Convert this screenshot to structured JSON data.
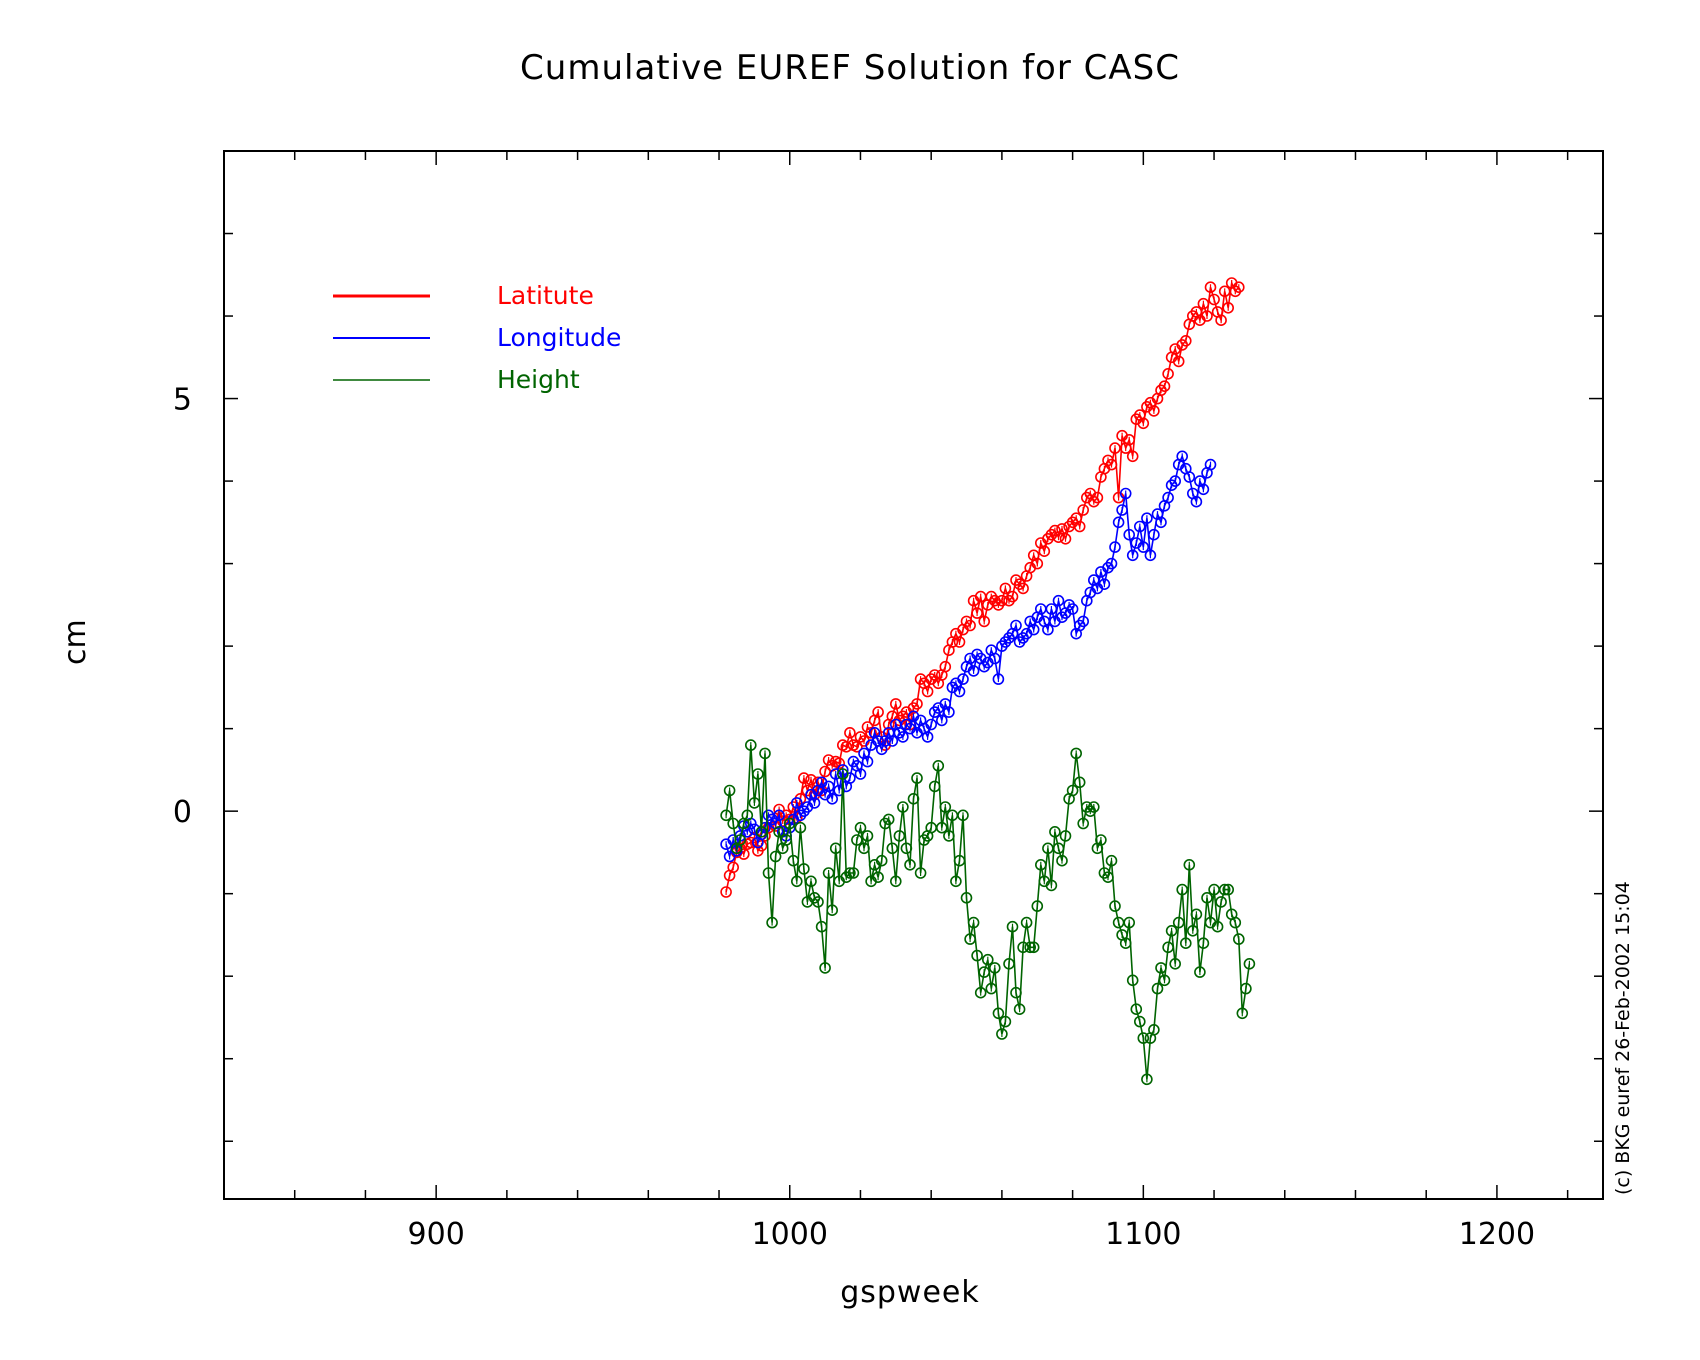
{
  "chart_data": {
    "type": "line",
    "title": "Cumulative EUREF Solution for CASC",
    "xlabel": "gspweek",
    "ylabel": "cm",
    "credit": "(c) BKG euref 26-Feb-2002 15:04",
    "xlim": [
      840,
      1230
    ],
    "ylim": [
      -4.7,
      8.0
    ],
    "xticks": [
      900,
      1000,
      1100,
      1200
    ],
    "yticks": [
      0,
      5
    ],
    "grid": false,
    "legend_position": "top-left",
    "series": [
      {
        "name": "Latitute",
        "color": "#ff0000",
        "x0": 982,
        "dx": 1,
        "values": [
          -0.98,
          -0.78,
          -0.68,
          -0.5,
          -0.45,
          -0.52,
          -0.4,
          -0.38,
          -0.32,
          -0.48,
          -0.42,
          -0.3,
          -0.2,
          -0.1,
          -0.18,
          0.02,
          -0.12,
          -0.05,
          -0.1,
          0.05,
          -0.08,
          0.15,
          0.4,
          0.25,
          0.38,
          0.2,
          0.35,
          0.25,
          0.48,
          0.62,
          0.55,
          0.6,
          0.58,
          0.8,
          0.78,
          0.95,
          0.8,
          0.78,
          0.9,
          0.85,
          1.02,
          0.95,
          1.1,
          1.2,
          0.9,
          0.8,
          1.05,
          1.15,
          1.3,
          1.1,
          1.15,
          1.2,
          1.05,
          1.25,
          1.3,
          1.6,
          1.55,
          1.45,
          1.6,
          1.65,
          1.55,
          1.65,
          1.75,
          1.95,
          2.05,
          2.15,
          2.05,
          2.2,
          2.3,
          2.25,
          2.55,
          2.4,
          2.6,
          2.3,
          2.5,
          2.6,
          2.55,
          2.5,
          2.55,
          2.7,
          2.55,
          2.6,
          2.8,
          2.75,
          2.7,
          2.85,
          2.95,
          3.1,
          3.0,
          3.25,
          3.15,
          3.3,
          3.35,
          3.4,
          3.32,
          3.42,
          3.3,
          3.45,
          3.5,
          3.55,
          3.45,
          3.65,
          3.8,
          3.85,
          3.75,
          3.8,
          4.05,
          4.15,
          4.25,
          4.2,
          4.4,
          3.8,
          4.55,
          4.4,
          4.5,
          4.3,
          4.75,
          4.8,
          4.7,
          4.9,
          4.95,
          4.85,
          5.0,
          5.1,
          5.15,
          5.3,
          5.5,
          5.6,
          5.45,
          5.65,
          5.7,
          5.9,
          6.0,
          6.05,
          5.95,
          6.15,
          6.0,
          6.35,
          6.2,
          6.05,
          5.95,
          6.3,
          6.1,
          6.4,
          6.3,
          6.35
        ],
        "circle_every": 1
      },
      {
        "name": "Longitude",
        "color": "#0000ff",
        "x0": 982,
        "dx": 1,
        "values": [
          -0.4,
          -0.55,
          -0.35,
          -0.48,
          -0.3,
          -0.18,
          -0.25,
          -0.15,
          -0.22,
          -0.38,
          -0.28,
          -0.2,
          -0.05,
          -0.1,
          -0.15,
          -0.05,
          -0.25,
          -0.3,
          -0.2,
          -0.1,
          0.1,
          -0.05,
          0.0,
          0.05,
          0.2,
          0.1,
          0.25,
          0.35,
          0.2,
          0.3,
          0.15,
          0.45,
          0.25,
          0.5,
          0.3,
          0.4,
          0.6,
          0.55,
          0.45,
          0.7,
          0.6,
          0.8,
          0.95,
          0.85,
          0.75,
          0.85,
          0.95,
          0.85,
          1.05,
          0.95,
          0.9,
          1.05,
          1.0,
          1.15,
          0.95,
          1.1,
          1.0,
          0.9,
          1.05,
          1.2,
          1.25,
          1.1,
          1.3,
          1.2,
          1.5,
          1.55,
          1.45,
          1.6,
          1.75,
          1.85,
          1.7,
          1.9,
          1.85,
          1.75,
          1.8,
          1.95,
          1.85,
          1.6,
          2.0,
          2.05,
          2.1,
          2.15,
          2.25,
          2.05,
          2.1,
          2.15,
          2.3,
          2.2,
          2.35,
          2.45,
          2.3,
          2.2,
          2.45,
          2.3,
          2.55,
          2.35,
          2.4,
          2.5,
          2.45,
          2.15,
          2.25,
          2.3,
          2.55,
          2.65,
          2.8,
          2.7,
          2.9,
          2.75,
          2.95,
          3.0,
          3.2,
          3.5,
          3.65,
          3.85,
          3.35,
          3.1,
          3.25,
          3.45,
          3.2,
          3.55,
          3.1,
          3.35,
          3.6,
          3.5,
          3.7,
          3.8,
          3.95,
          4.0,
          4.2,
          4.3,
          4.15,
          4.05,
          3.85,
          3.75,
          4.0,
          3.9,
          4.1,
          4.2
        ],
        "circle_every": 1
      },
      {
        "name": "Height",
        "color": "#006400",
        "x0": 982,
        "dx": 1,
        "values": [
          -0.05,
          0.25,
          -0.15,
          -0.45,
          -0.35,
          -0.15,
          -0.05,
          0.8,
          0.1,
          0.45,
          -0.25,
          0.7,
          -0.75,
          -1.35,
          -0.55,
          -0.25,
          -0.45,
          -0.35,
          -0.15,
          -0.6,
          -0.85,
          -0.2,
          -0.7,
          -1.1,
          -0.85,
          -1.05,
          -1.1,
          -1.4,
          -1.9,
          -0.75,
          -1.2,
          -0.45,
          -0.85,
          0.45,
          -0.8,
          -0.75,
          -0.75,
          -0.35,
          -0.2,
          -0.45,
          -0.3,
          -0.85,
          -0.65,
          -0.8,
          -0.6,
          -0.15,
          -0.1,
          -0.45,
          -0.85,
          -0.3,
          0.05,
          -0.45,
          -0.65,
          0.15,
          0.4,
          -0.75,
          -0.35,
          -0.3,
          -0.2,
          0.3,
          0.55,
          -0.2,
          0.05,
          -0.3,
          -0.05,
          -0.85,
          -0.6,
          -0.05,
          -1.05,
          -1.55,
          -1.35,
          -1.75,
          -2.2,
          -1.95,
          -1.8,
          -2.15,
          -1.9,
          -2.45,
          -2.7,
          -2.55,
          -1.85,
          -1.4,
          -2.2,
          -2.4,
          -1.65,
          -1.35,
          -1.65,
          -1.65,
          -1.15,
          -0.65,
          -0.85,
          -0.45,
          -0.9,
          -0.25,
          -0.45,
          -0.6,
          -0.3,
          0.15,
          0.25,
          0.7,
          0.35,
          -0.15,
          0.05,
          0.0,
          0.05,
          -0.45,
          -0.35,
          -0.75,
          -0.8,
          -0.6,
          -1.15,
          -1.35,
          -1.5,
          -1.6,
          -1.35,
          -2.05,
          -2.4,
          -2.55,
          -2.75,
          -3.25,
          -2.75,
          -2.65,
          -2.15,
          -1.9,
          -2.05,
          -1.65,
          -1.45,
          -1.85,
          -1.35,
          -0.95,
          -1.6,
          -0.65,
          -1.45,
          -1.25,
          -1.95,
          -1.6,
          -1.05,
          -1.35,
          -0.95,
          -1.4,
          -1.1,
          -0.95,
          -0.95,
          -1.25,
          -1.35,
          -1.55,
          -2.45,
          -2.15,
          -1.85
        ],
        "circle_every": 1
      }
    ]
  }
}
